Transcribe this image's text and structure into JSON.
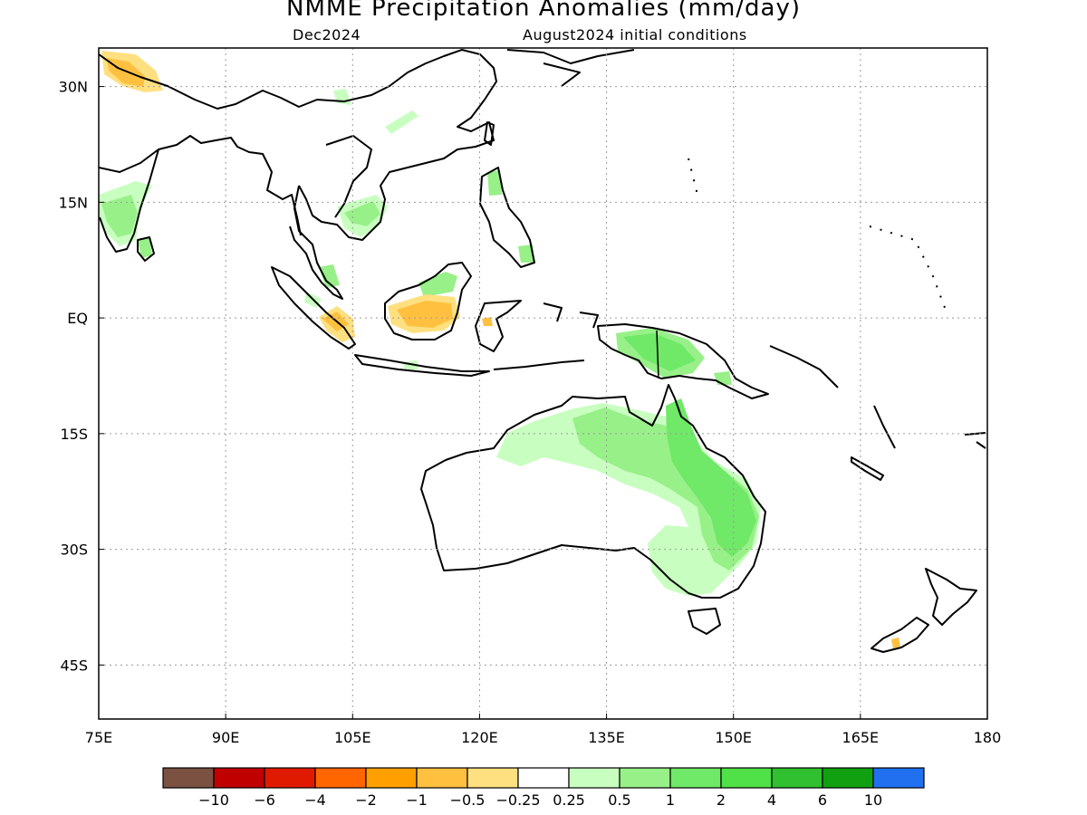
{
  "header": {
    "title": "NMME Precipitation Anomalies (mm/day)",
    "target_month": "Dec2024",
    "initial_conditions": "August2024 initial conditions"
  },
  "map": {
    "projection": "lat-lon",
    "lon_range": [
      75,
      180
    ],
    "lat_range": [
      -52,
      35
    ],
    "grid": "dotted",
    "x_ticks": [
      "75E",
      "90E",
      "105E",
      "120E",
      "135E",
      "150E",
      "165E",
      "180"
    ],
    "x_tick_values": [
      75,
      90,
      105,
      120,
      135,
      150,
      165,
      180
    ],
    "y_ticks": [
      "30N",
      "15N",
      "EQ",
      "15S",
      "30S",
      "45S"
    ],
    "y_tick_values": [
      30,
      15,
      0,
      -15,
      -30,
      -45
    ]
  },
  "colorbar": {
    "colors": [
      "#7b5242",
      "#c00000",
      "#e01a00",
      "#ff6600",
      "#ffa000",
      "#ffc040",
      "#ffe080",
      "#ffffff",
      "#c8ffc0",
      "#98f088",
      "#70e868",
      "#50e048",
      "#30c030",
      "#10a010",
      "#2070f0"
    ],
    "labels": [
      "−10",
      "−6",
      "−4",
      "−2",
      "−1",
      "−0.5",
      "−0.25",
      "0.25",
      "0.5",
      "1",
      "2",
      "4",
      "6",
      "10"
    ]
  },
  "anomaly_regions": [
    {
      "name": "Tibetan Plateau west",
      "category": "dry",
      "color": "#ffc040"
    },
    {
      "name": "Southern India",
      "category": "wet",
      "color": "#98f088"
    },
    {
      "name": "Sri Lanka",
      "category": "wet",
      "color": "#98f088"
    },
    {
      "name": "Cambodia / Vietnam",
      "category": "wet",
      "color": "#98f088"
    },
    {
      "name": "Southern China",
      "category": "wet",
      "color": "#c8ffc0"
    },
    {
      "name": "Philippines",
      "category": "wet",
      "color": "#98f088"
    },
    {
      "name": "Borneo",
      "category": "dry",
      "color": "#ffc040"
    },
    {
      "name": "Sumatra south",
      "category": "dry",
      "color": "#ffe080"
    },
    {
      "name": "Malay Peninsula",
      "category": "wet",
      "color": "#98f088"
    },
    {
      "name": "New Guinea",
      "category": "wet",
      "color": "#70e868"
    },
    {
      "name": "Northern Australia",
      "category": "wet",
      "color": "#c8ffc0"
    },
    {
      "name": "Queensland",
      "category": "wet",
      "color": "#70e868"
    },
    {
      "name": "Southeast Australia",
      "category": "wet",
      "color": "#c8ffc0"
    },
    {
      "name": "New Zealand South Island",
      "category": "dry",
      "color": "#ffc040"
    }
  ]
}
